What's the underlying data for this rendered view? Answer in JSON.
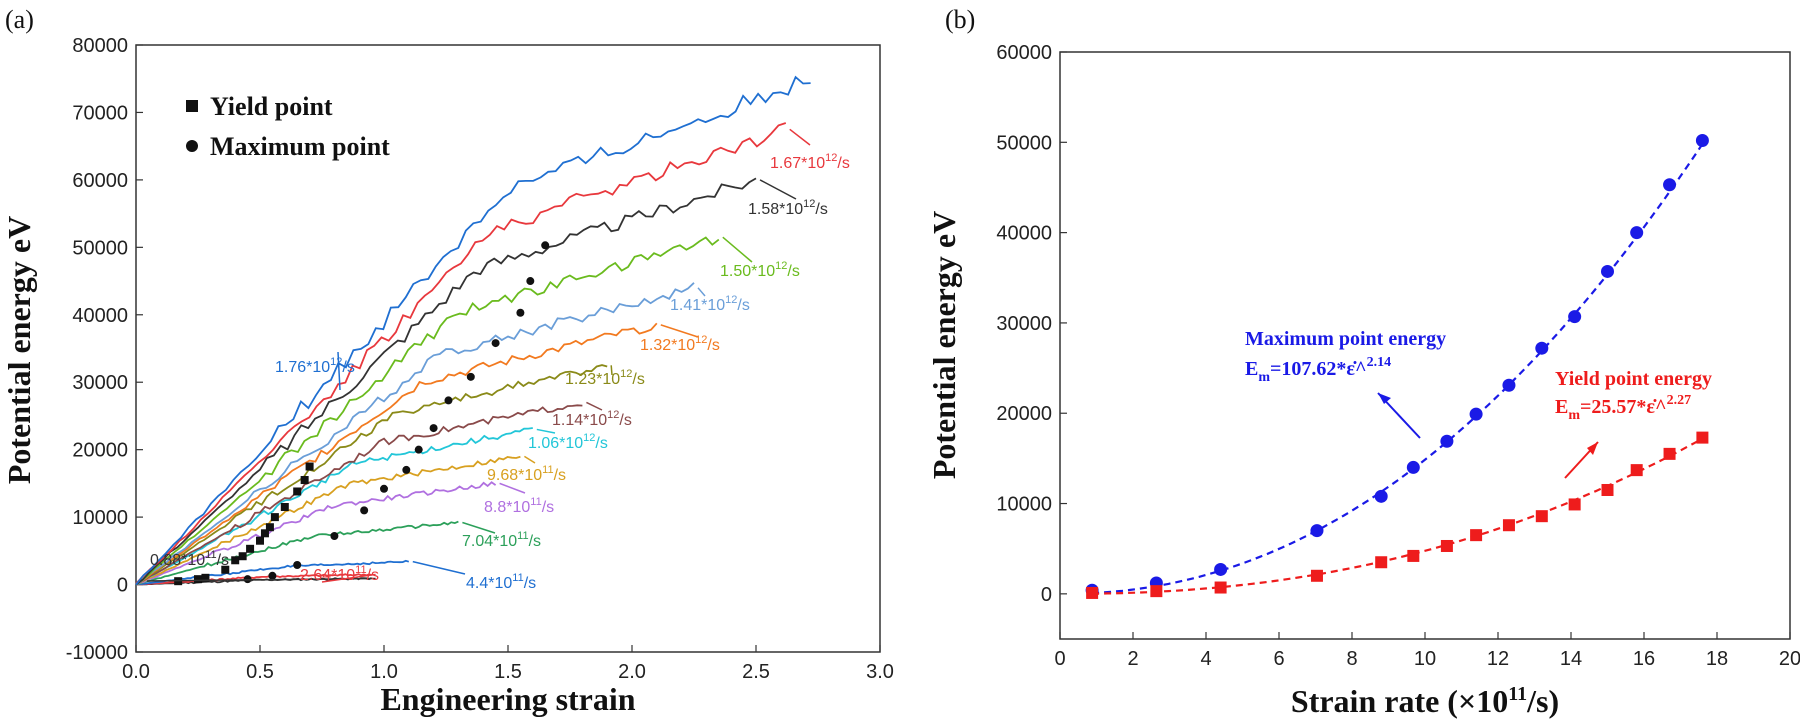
{
  "chart_data": [
    {
      "type": "line",
      "panel_label": "(a)",
      "xlabel": "Engineering strain",
      "ylabel": "Potential energy eV",
      "xlim": [
        0.0,
        3.0
      ],
      "ylim": [
        -10000,
        80000
      ],
      "xticks": [
        "0.0",
        "0.5",
        "1.0",
        "1.5",
        "2.0",
        "2.5",
        "3.0"
      ],
      "yticks": [
        "-10000",
        "0",
        "10000",
        "20000",
        "30000",
        "40000",
        "50000",
        "60000",
        "70000",
        "80000"
      ],
      "legend": [
        {
          "marker": "square",
          "label": "Yield point"
        },
        {
          "marker": "circle",
          "label": "Maximum point"
        }
      ],
      "series": [
        {
          "base": "0.88*10",
          "exp": "11",
          "unit": "/s",
          "color": "#333333",
          "end_strain": 0.95,
          "end_energy": 900,
          "yield": [
            0.17,
            500
          ],
          "max": [
            0.45,
            800
          ]
        },
        {
          "base": "2.64*10",
          "exp": "11",
          "unit": "/s",
          "color": "#e8383d",
          "end_strain": 0.95,
          "end_energy": 1500,
          "yield": [
            0.25,
            800
          ],
          "max": [
            0.55,
            1300
          ]
        },
        {
          "base": "4.4*10",
          "exp": "11",
          "unit": "/s",
          "color": "#1f6fd1",
          "end_strain": 1.1,
          "end_energy": 3400,
          "yield": [
            0.28,
            1000
          ],
          "max": [
            0.65,
            2900
          ]
        },
        {
          "base": "7.04*10",
          "exp": "11",
          "unit": "/s",
          "color": "#2ca05a",
          "end_strain": 1.3,
          "end_energy": 9200,
          "yield": [
            0.36,
            2200
          ],
          "max": [
            0.8,
            7200
          ]
        },
        {
          "base": "8.8*10",
          "exp": "11",
          "unit": "/s",
          "color": "#b070e0",
          "end_strain": 1.45,
          "end_energy": 15000,
          "yield": [
            0.4,
            3600
          ],
          "max": [
            0.92,
            11000
          ]
        },
        {
          "base": "9.68*10",
          "exp": "11",
          "unit": "/s",
          "color": "#d8a020",
          "end_strain": 1.55,
          "end_energy": 19000,
          "yield": [
            0.43,
            4200
          ],
          "max": [
            1.0,
            14200
          ]
        },
        {
          "base": "1.06*10",
          "exp": "12",
          "unit": "/s",
          "color": "#22c6d8",
          "end_strain": 1.6,
          "end_energy": 23000,
          "yield": [
            0.46,
            5300
          ],
          "max": [
            1.09,
            17000
          ]
        },
        {
          "base": "1.14*10",
          "exp": "12",
          "unit": "/s",
          "color": "#8a4a4a",
          "end_strain": 1.8,
          "end_energy": 27000,
          "yield": [
            0.5,
            6500
          ],
          "max": [
            1.14,
            20000
          ]
        },
        {
          "base": "1.23*10",
          "exp": "12",
          "unit": "/s",
          "color": "#8a8a18",
          "end_strain": 1.9,
          "end_energy": 32500,
          "yield": [
            0.52,
            7600
          ],
          "max": [
            1.2,
            23200
          ]
        },
        {
          "base": "1.32*10",
          "exp": "12",
          "unit": "/s",
          "color": "#f27a20",
          "end_strain": 2.1,
          "end_energy": 38500,
          "yield": [
            0.54,
            8500
          ],
          "max": [
            1.26,
            27300
          ]
        },
        {
          "base": "1.41*10",
          "exp": "12",
          "unit": "/s",
          "color": "#6a9ed8",
          "end_strain": 2.25,
          "end_energy": 44000,
          "yield": [
            0.56,
            10000
          ],
          "max": [
            1.35,
            30800
          ]
        },
        {
          "base": "1.50*10",
          "exp": "12",
          "unit": "/s",
          "color": "#6abb1e",
          "end_strain": 2.35,
          "end_energy": 51500,
          "yield": [
            0.6,
            11500
          ],
          "max": [
            1.45,
            35800
          ]
        },
        {
          "base": "1.58*10",
          "exp": "12",
          "unit": "/s",
          "color": "#333333",
          "end_strain": 2.5,
          "end_energy": 60000,
          "yield": [
            0.65,
            13800
          ],
          "max": [
            1.55,
            40300
          ]
        },
        {
          "base": "1.67*10",
          "exp": "12",
          "unit": "/s",
          "color": "#e8383d",
          "end_strain": 2.62,
          "end_energy": 67500,
          "yield": [
            0.68,
            15500
          ],
          "max": [
            1.59,
            45000
          ]
        },
        {
          "base": "1.76*10",
          "exp": "12",
          "unit": "/s",
          "color": "#1f6fd1",
          "end_strain": 2.72,
          "end_energy": 75000,
          "yield": [
            0.7,
            17500
          ],
          "max": [
            1.65,
            50300
          ]
        }
      ]
    },
    {
      "type": "scatter",
      "panel_label": "(b)",
      "xlabel_base": "Strain rate (×10",
      "xlabel_exp": "11",
      "xlabel_tail": "/s)",
      "ylabel": "Potential energy eV",
      "xlim": [
        0,
        20
      ],
      "ylim": [
        -5000,
        60000
      ],
      "xticks": [
        "0",
        "2",
        "4",
        "6",
        "8",
        "10",
        "12",
        "14",
        "16",
        "18",
        "20"
      ],
      "yticks": [
        "0",
        "10000",
        "20000",
        "30000",
        "40000",
        "50000",
        "60000"
      ],
      "x": [
        0.88,
        2.64,
        4.4,
        7.04,
        8.8,
        9.68,
        10.6,
        11.4,
        12.3,
        13.2,
        14.1,
        15.0,
        15.8,
        16.7,
        17.6
      ],
      "series": [
        {
          "name": "Maximum point energy",
          "color": "#1a1ae6",
          "marker": "circle",
          "values": [
            400,
            1200,
            2700,
            7000,
            10800,
            14000,
            16900,
            19900,
            23100,
            27200,
            30700,
            35700,
            40000,
            45300,
            50200
          ],
          "fit": {
            "a": 107.62,
            "b": 2.14
          },
          "eq_prefix": "E",
          "eq_sub": "m",
          "eq_mid": "=107.62*ε̇^",
          "eq_exp": "2.14"
        },
        {
          "name": "Yield point energy",
          "color": "#ee1c1c",
          "marker": "square",
          "values": [
            100,
            300,
            700,
            2000,
            3500,
            4200,
            5300,
            6500,
            7600,
            8600,
            9900,
            11500,
            13700,
            15500,
            17300
          ],
          "fit": {
            "a": 25.57,
            "b": 2.27
          },
          "eq_prefix": "E",
          "eq_sub": "m",
          "eq_mid": "=25.57*ε̇^",
          "eq_exp": "2.27"
        }
      ]
    }
  ]
}
